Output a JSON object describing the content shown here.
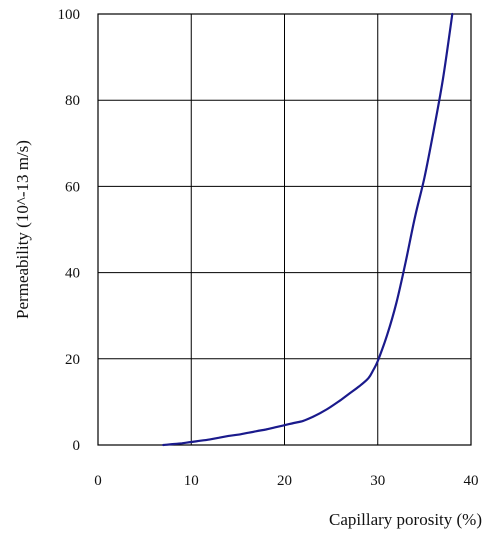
{
  "chart_data": {
    "type": "line",
    "xlabel": "Capillary porosity (%)",
    "ylabel": "Permeability (10^-13 m/s)",
    "xlim": [
      0,
      40
    ],
    "ylim": [
      0,
      100
    ],
    "x_ticks": [
      0,
      10,
      20,
      30,
      40
    ],
    "y_ticks": [
      0,
      20,
      40,
      60,
      80,
      100
    ],
    "grid": true,
    "line_color": "#1a1a8c",
    "series": [
      {
        "x": [
          7,
          8,
          9,
          10,
          11,
          12,
          13,
          14,
          15,
          16,
          17,
          18,
          19,
          20,
          21,
          22,
          23,
          24,
          25,
          26,
          27,
          28,
          29,
          29.5,
          30,
          31,
          32,
          33,
          34,
          35,
          36,
          37,
          38
        ],
        "y": [
          0,
          0.2,
          0.4,
          0.7,
          1.0,
          1.3,
          1.7,
          2.1,
          2.4,
          2.8,
          3.2,
          3.6,
          4.1,
          4.6,
          5.1,
          5.6,
          6.5,
          7.6,
          8.9,
          10.4,
          12.0,
          13.6,
          15.5,
          17.3,
          19.5,
          25.5,
          33.0,
          42.5,
          53.0,
          62.0,
          73.0,
          85.0,
          100.0
        ]
      }
    ]
  }
}
